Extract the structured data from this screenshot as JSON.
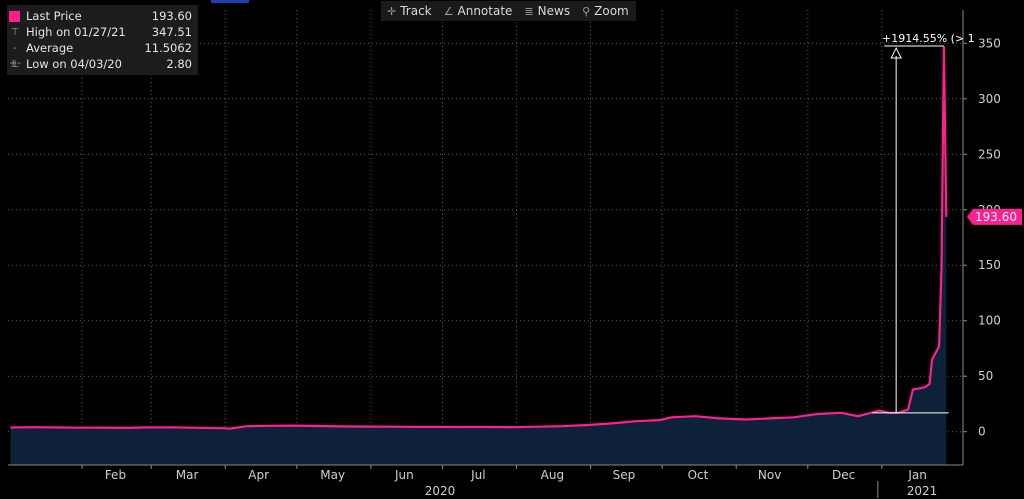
{
  "toolbar": {
    "items": [
      {
        "icon": "crosshair-icon",
        "glyph": "✛",
        "label": "Track"
      },
      {
        "icon": "annotate-icon",
        "glyph": "∠",
        "label": "Annotate"
      },
      {
        "icon": "news-icon",
        "glyph": "≣",
        "label": "News"
      },
      {
        "icon": "zoom-icon",
        "glyph": "⚲",
        "label": "Zoom"
      }
    ]
  },
  "legend": {
    "last_price_label": "Last Price",
    "last_price_value": "193.60",
    "high_label": "High on 01/27/21",
    "high_value": "347.51",
    "average_label": "Average",
    "average_value": "11.5062",
    "low_label": "Low on 04/03/20",
    "low_value": "2.80"
  },
  "colors": {
    "line": "#ff1f8e",
    "area": "#0d2238",
    "grid": "#5a5a5a",
    "text": "#d0d0d0",
    "marker": "#ffffff"
  },
  "chart_data": {
    "type": "area",
    "series": [
      {
        "name": "Last Price",
        "x": [
          "2020-01-02",
          "2020-01-10",
          "2020-01-20",
          "2020-01-31",
          "2020-02-10",
          "2020-02-20",
          "2020-02-28",
          "2020-03-10",
          "2020-03-20",
          "2020-03-31",
          "2020-04-03",
          "2020-04-10",
          "2020-04-20",
          "2020-04-30",
          "2020-05-10",
          "2020-05-20",
          "2020-05-31",
          "2020-06-10",
          "2020-06-20",
          "2020-06-30",
          "2020-07-10",
          "2020-07-20",
          "2020-07-31",
          "2020-08-10",
          "2020-08-20",
          "2020-08-31",
          "2020-09-10",
          "2020-09-20",
          "2020-09-30",
          "2020-10-05",
          "2020-10-15",
          "2020-10-25",
          "2020-11-05",
          "2020-11-15",
          "2020-11-25",
          "2020-12-05",
          "2020-12-15",
          "2020-12-22",
          "2020-12-31",
          "2021-01-04",
          "2021-01-08",
          "2021-01-12",
          "2021-01-14",
          "2021-01-19",
          "2021-01-21",
          "2021-01-22",
          "2021-01-25",
          "2021-01-26",
          "2021-01-27",
          "2021-01-28"
        ],
        "values": [
          3.8,
          4.1,
          3.9,
          3.6,
          3.7,
          3.4,
          3.9,
          4.0,
          3.5,
          3.2,
          2.8,
          5.0,
          5.3,
          5.5,
          5.1,
          4.8,
          4.6,
          4.5,
          4.3,
          4.3,
          4.2,
          4.2,
          4.1,
          4.5,
          5.0,
          6.0,
          7.5,
          9.5,
          10.5,
          13,
          14,
          12,
          11,
          12,
          13,
          16,
          17,
          14,
          19,
          17,
          17,
          20,
          38,
          40,
          43,
          65,
          77,
          148,
          347.51,
          193.6
        ]
      }
    ],
    "xlabel": "",
    "ylabel": "",
    "x_tick_labels": [
      "Feb",
      "Mar",
      "Apr",
      "May",
      "Jun",
      "Jul",
      "Aug",
      "Sep",
      "Oct",
      "Nov",
      "Dec",
      "Jan"
    ],
    "year_labels": [
      "2020",
      "2021"
    ],
    "y_ticks": [
      0,
      50,
      100,
      150,
      200,
      250,
      300,
      350
    ],
    "ylim": [
      -30,
      380
    ],
    "last_value_tag": "193.60",
    "change_annotation": "+1914.55% (> 1",
    "grid": true
  }
}
